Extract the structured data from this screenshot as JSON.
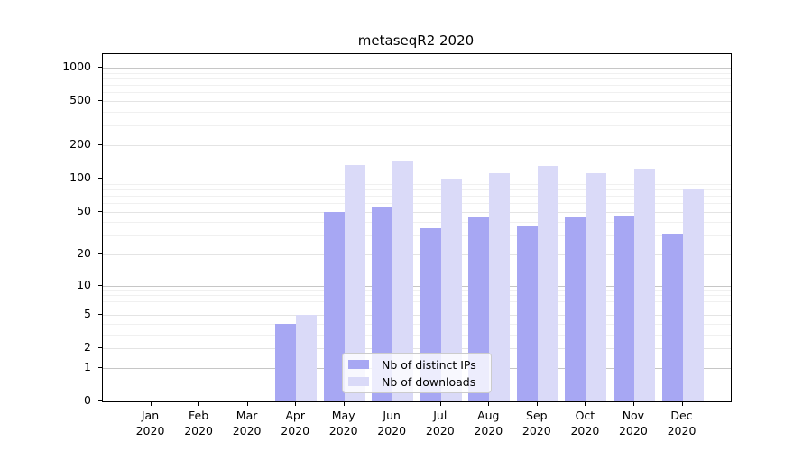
{
  "title": "metaseqR2 2020",
  "chart_data": {
    "type": "bar",
    "title": "metaseqR2 2020",
    "categories": [
      "Jan",
      "Feb",
      "Mar",
      "Apr",
      "May",
      "Jun",
      "Jul",
      "Aug",
      "Sep",
      "Oct",
      "Nov",
      "Dec"
    ],
    "category_year": "2020",
    "series": [
      {
        "name": "Nb of distinct IPs",
        "color": "#a7a7f3",
        "values": [
          0,
          0,
          0,
          4,
          50,
          56,
          35,
          44,
          37,
          44,
          45,
          31
        ]
      },
      {
        "name": "Nb of downloads",
        "color": "#dadaf8",
        "values": [
          0,
          0,
          0,
          5,
          132,
          143,
          98,
          111,
          131,
          111,
          124,
          80
        ]
      }
    ],
    "xlabel": "",
    "ylabel": "",
    "yscale": "log1p",
    "yticks": [
      0,
      1,
      2,
      5,
      10,
      20,
      50,
      100,
      200,
      500,
      1000
    ],
    "ylim": [
      0,
      1325
    ],
    "grid": true,
    "legend_position": "bottom-center"
  }
}
